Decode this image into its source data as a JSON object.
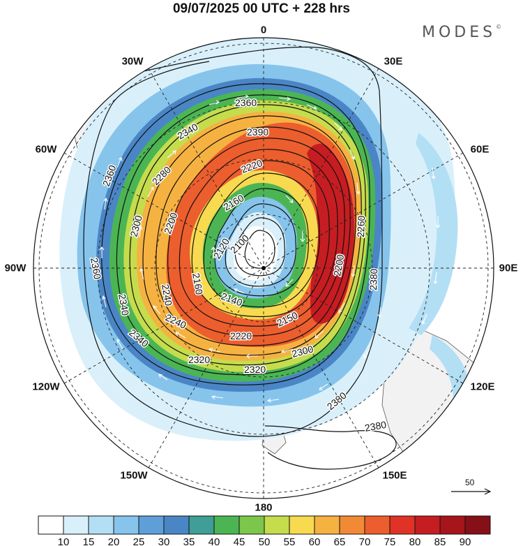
{
  "header": {
    "title": "09/07/2025  00 UTC  + 228 hrs",
    "brand": "MODES",
    "brand_mark": "©"
  },
  "map": {
    "projection": "south-polar-stereographic",
    "longitude_labels": [
      "0",
      "30E",
      "60E",
      "90E",
      "120E",
      "150E",
      "180",
      "150W",
      "120W",
      "90W",
      "60W",
      "30W"
    ],
    "land_color": "#f2f2f2",
    "contour_labels": [
      "2360",
      "2340",
      "2300",
      "2280",
      "2220",
      "2390",
      "2360",
      "2160",
      "2120",
      "2100",
      "2160",
      "2140",
      "2200",
      "2240",
      "2240",
      "2220",
      "2320",
      "2320",
      "2340",
      "2340",
      "2360",
      "2380",
      "2380",
      "2380",
      "2300",
      "2150",
      "2200",
      "2260"
    ]
  },
  "reference_vector": {
    "label": "50"
  },
  "colorbar": {
    "ticks": [
      "10",
      "15",
      "20",
      "25",
      "30",
      "35",
      "40",
      "45",
      "50",
      "55",
      "60",
      "65",
      "70",
      "75",
      "80",
      "85",
      "90"
    ],
    "colors": [
      "#ffffff",
      "#d9f0fb",
      "#b3dff5",
      "#86c4ec",
      "#5f9fd9",
      "#4a86c6",
      "#3f9e95",
      "#4cb553",
      "#7cc64c",
      "#c5dc4d",
      "#f7da4f",
      "#f6b241",
      "#f28a35",
      "#ec5e2d",
      "#e03227",
      "#c61d22",
      "#a6141c",
      "#861018"
    ]
  }
}
